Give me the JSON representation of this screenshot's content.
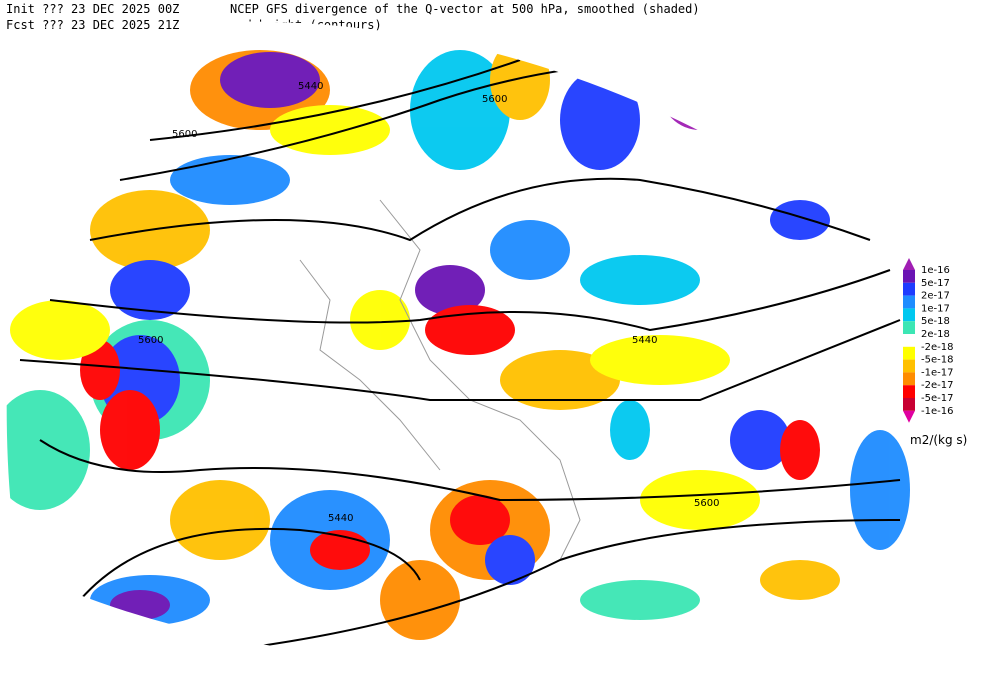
{
  "header": {
    "init": "Init  ??? 23 DEC 2025 00Z",
    "title": "NCEP GFS divergence of the Q-vector at 500 hPa, smoothed (shaded)",
    "fcst": "Fcst ??? 23 DEC 2025 21Z",
    "subtitle": "and height (contours)"
  },
  "contour_labels": [
    "5440",
    "5600",
    "5600",
    "5600",
    "5440",
    "5440",
    "5600"
  ],
  "colorbar": {
    "labels": [
      "1e-16",
      "5e-17",
      "2e-17",
      "1e-17",
      "5e-18",
      "2e-18",
      "-2e-18",
      "-5e-18",
      "-1e-17",
      "-2e-17",
      "-5e-17",
      "-1e-16"
    ],
    "colors": [
      "#a01eb4",
      "#6a14b4",
      "#1e3cff",
      "#1e8cff",
      "#00c8f0",
      "#3ce6b4",
      "#ffffff",
      "#ffff00",
      "#ffc000",
      "#ff8c00",
      "#ff0000",
      "#c80032",
      "#e000a0"
    ],
    "units": "m2/(kg s)"
  }
}
